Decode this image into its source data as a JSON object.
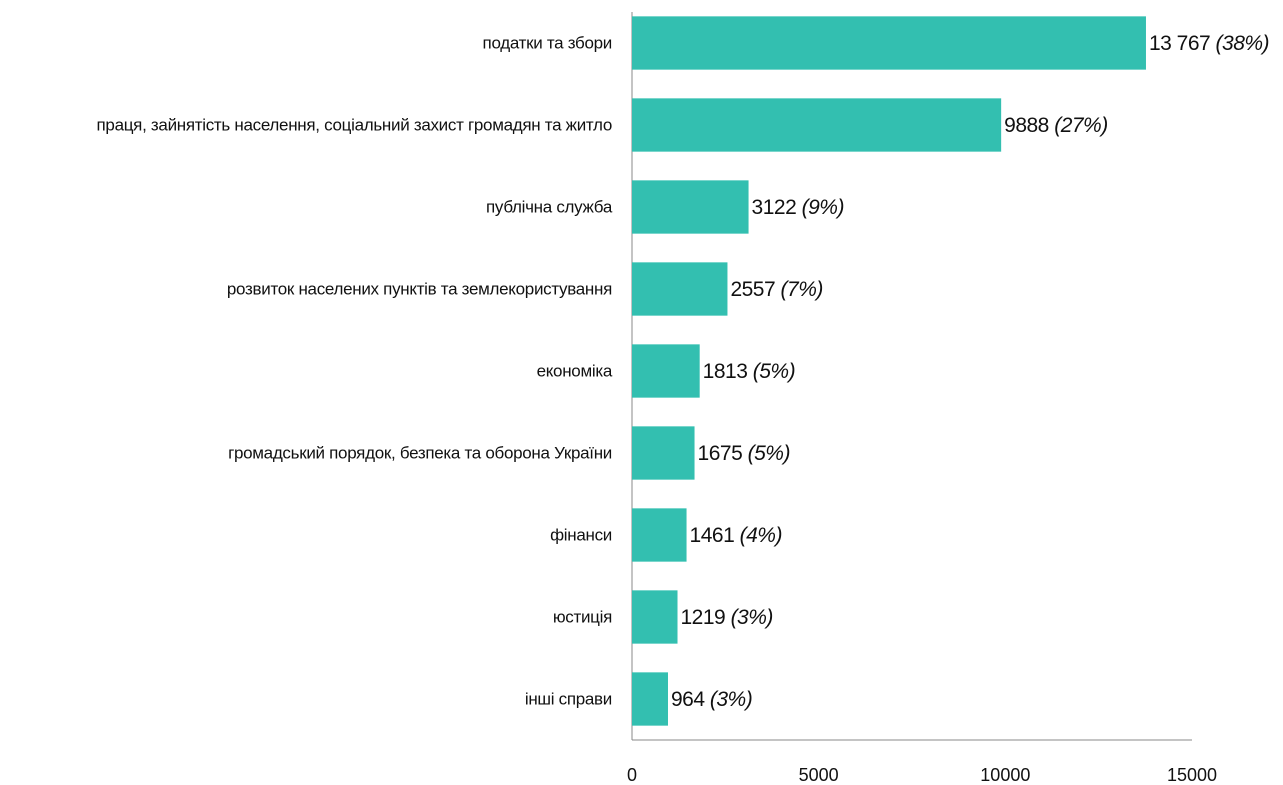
{
  "chart_data": {
    "type": "bar",
    "orientation": "horizontal",
    "color": "#33bfb0",
    "categories": [
      "податки та збори",
      "праця, зайнятість населення, соціальний захист громадян та житло",
      "публічна служба",
      "розвиток населених пунктів та землекористування",
      "економіка",
      "громадський порядок, безпека та оборона України",
      "фінанси",
      "юстиція",
      "інші справи"
    ],
    "values": [
      13767,
      9888,
      3122,
      2557,
      1813,
      1675,
      1461,
      1219,
      964
    ],
    "value_labels": [
      "13 767",
      "9888",
      "3122",
      "2557",
      "1813",
      "1675",
      "1461",
      "1219",
      "964"
    ],
    "shares": [
      38,
      27,
      9,
      7,
      5,
      5,
      4,
      3,
      3
    ],
    "share_labels": [
      "(38%)",
      "(27%)",
      "(9%)",
      "(7%)",
      "(5%)",
      "(5%)",
      "(4%)",
      "(3%)",
      "(3%)"
    ],
    "xlim": [
      0,
      15000
    ],
    "xticks": [
      0,
      5000,
      10000,
      15000
    ],
    "grid": false
  }
}
